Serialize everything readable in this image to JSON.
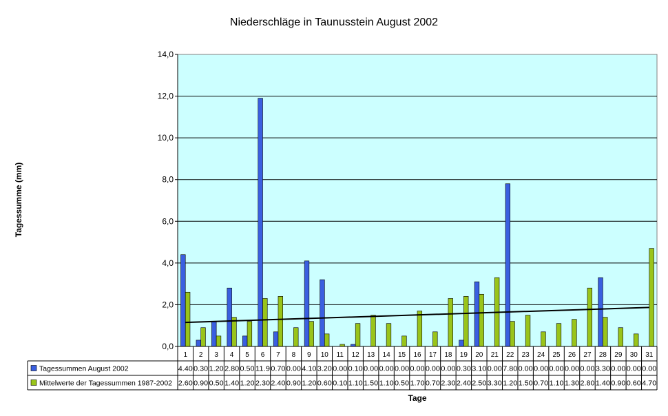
{
  "chart_data": {
    "type": "bar",
    "title": "Niederschläge in Taunusstein August 2002",
    "xlabel": "Tage",
    "ylabel": "Tagessumme (mm)",
    "ylim": [
      0,
      14
    ],
    "yticks": [
      "0,0",
      "2,0",
      "4,0",
      "6,0",
      "8,0",
      "10,0",
      "12,0",
      "14,0"
    ],
    "categories": [
      "1",
      "2",
      "3",
      "4",
      "5",
      "6",
      "7",
      "8",
      "9",
      "10",
      "11",
      "12",
      "13",
      "14",
      "15",
      "16",
      "17",
      "18",
      "19",
      "20",
      "21",
      "22",
      "23",
      "24",
      "25",
      "26",
      "27",
      "28",
      "29",
      "30",
      "31"
    ],
    "series": [
      {
        "name": "Tagessummen August 2002",
        "color": "#3a5fe0",
        "values": [
          4.4,
          0.3,
          1.2,
          2.8,
          0.5,
          11.9,
          0.7,
          0.0,
          4.1,
          3.2,
          0.0,
          0.1,
          0.0,
          0.0,
          0.0,
          0.0,
          0.0,
          0.0,
          0.3,
          3.1,
          0.0,
          7.8,
          0.0,
          0.0,
          0.0,
          0.0,
          0.0,
          3.3,
          0.0,
          0.0,
          0.0
        ],
        "labels": [
          "4.40",
          "0.30",
          "1.20",
          "2.80",
          "0.50",
          "11.9",
          "0.70",
          "0.00",
          "4.10",
          "3.20",
          "0.00",
          "0.10",
          "0.00",
          "0.00",
          "0.00",
          "0.00",
          "0.00",
          "0.00",
          "0.30",
          "3.10",
          "0.00",
          "7.80",
          "0.00",
          "0.00",
          "0.00",
          "0.00",
          "0.00",
          "3.30",
          "0.00",
          "0.00",
          "0.00"
        ]
      },
      {
        "name": "Mittelwerte der Tagessummen 1987-2002",
        "color": "#99c41a",
        "values": [
          2.6,
          0.9,
          0.5,
          1.4,
          1.2,
          2.3,
          2.4,
          0.9,
          1.2,
          0.6,
          0.1,
          1.1,
          1.5,
          1.1,
          0.5,
          1.7,
          0.7,
          2.3,
          2.4,
          2.5,
          3.3,
          1.2,
          1.5,
          0.7,
          1.1,
          1.3,
          2.8,
          1.4,
          0.9,
          0.6,
          4.7
        ],
        "labels": [
          "2.60",
          "0.90",
          "0.50",
          "1.40",
          "1.20",
          "2.30",
          "2.40",
          "0.90",
          "1.20",
          "0.60",
          "0.10",
          "1.10",
          "1.50",
          "1.10",
          "0.50",
          "1.70",
          "0.70",
          "2.30",
          "2.40",
          "2.50",
          "3.30",
          "1.20",
          "1.50",
          "0.70",
          "1.10",
          "1.30",
          "2.80",
          "1.40",
          "0.90",
          "0.60",
          "4.70"
        ]
      }
    ],
    "trendline": {
      "series": 1,
      "color": "#000000",
      "start": 1.15,
      "end": 1.87
    },
    "plot_background": "#ccffff",
    "grid": true,
    "data_table": true,
    "legend": "data-table-left"
  }
}
